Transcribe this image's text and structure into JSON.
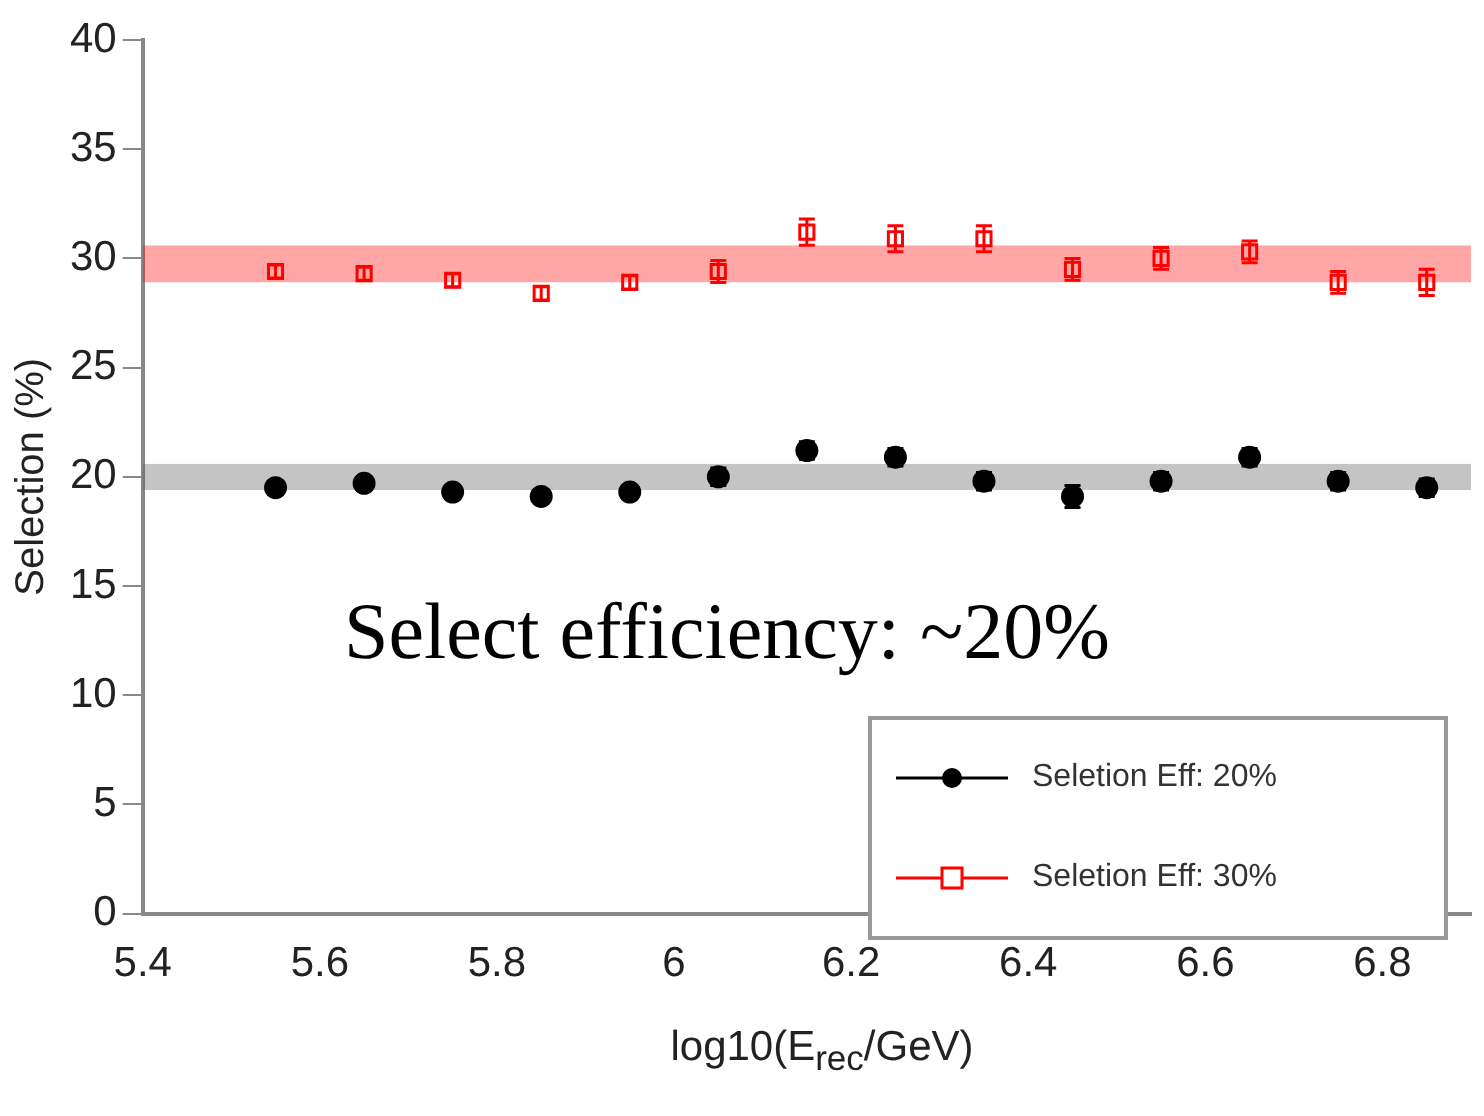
{
  "chart_data": {
    "type": "scatter",
    "xlabel": "log10(E$_{rec}$/GeV)",
    "ylabel": "Selection (%)",
    "x": [
      5.55,
      5.65,
      5.75,
      5.85,
      5.95,
      6.05,
      6.15,
      6.25,
      6.35,
      6.45,
      6.55,
      6.65,
      6.75,
      6.85
    ],
    "series": [
      {
        "name": "Seletion Eff: 20%",
        "color": "#000000",
        "marker": "circle",
        "values": [
          19.5,
          19.7,
          19.3,
          19.1,
          19.3,
          20.0,
          21.2,
          20.9,
          19.8,
          19.1,
          19.8,
          20.9,
          19.8,
          19.5
        ],
        "errors": [
          0.3,
          0.3,
          0.3,
          0.3,
          0.3,
          0.4,
          0.4,
          0.4,
          0.4,
          0.5,
          0.4,
          0.4,
          0.4,
          0.4
        ]
      },
      {
        "name": "Seletion Eff: 30%",
        "color": "#ff0000",
        "marker": "square",
        "values": [
          29.4,
          29.3,
          29.0,
          28.4,
          28.9,
          29.4,
          31.2,
          30.9,
          30.9,
          29.5,
          30.0,
          30.3,
          28.9,
          28.9
        ],
        "errors": [
          0.3,
          0.3,
          0.3,
          0.3,
          0.3,
          0.5,
          0.6,
          0.6,
          0.6,
          0.5,
          0.5,
          0.5,
          0.5,
          0.6
        ]
      }
    ],
    "bands": [
      {
        "axis": "y",
        "from": 19.4,
        "to": 20.6,
        "color": "#555555"
      },
      {
        "axis": "y",
        "from": 28.9,
        "to": 30.6,
        "color": "#ff0000"
      }
    ],
    "annotations": [
      "Select efficiency: ~20%"
    ],
    "xlim": [
      5.4,
      6.9
    ],
    "xticks": [
      5.4,
      5.6,
      5.8,
      6,
      6.2,
      6.4,
      6.6,
      6.8
    ],
    "ylim": [
      0,
      40
    ],
    "yticks": [
      0,
      5,
      10,
      15,
      20,
      25,
      30,
      35,
      40
    ],
    "legend": "bottom right"
  }
}
